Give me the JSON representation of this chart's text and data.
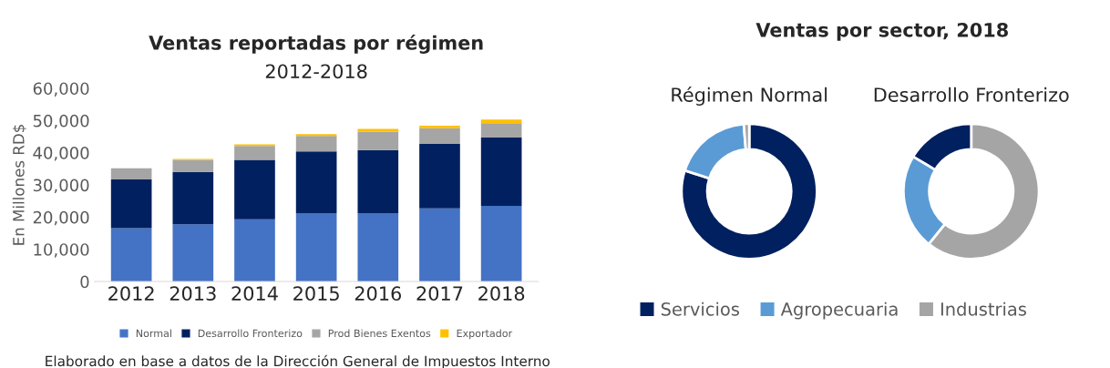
{
  "chart_data": [
    {
      "type": "bar",
      "title": "Ventas reportadas por régimen",
      "subtitle": "2012-2018",
      "ylabel": "En Millones RD$",
      "categories": [
        "2012",
        "2013",
        "2014",
        "2015",
        "2016",
        "2017",
        "2018"
      ],
      "stacked": true,
      "series": [
        {
          "name": "Normal",
          "color": "#4472c4",
          "values": [
            16600,
            17800,
            19300,
            21200,
            21200,
            22700,
            23500
          ]
        },
        {
          "name": "Desarrollo Fronterizo",
          "color": "#002060",
          "values": [
            15100,
            16200,
            18500,
            19200,
            19600,
            20000,
            21200
          ]
        },
        {
          "name": "Prod Bienes Exentos",
          "color": "#a5a5a5",
          "values": [
            3500,
            3800,
            4300,
            4800,
            5700,
            4900,
            4500
          ]
        },
        {
          "name": "Exportador",
          "color": "#ffc000",
          "values": [
            0,
            300,
            500,
            600,
            900,
            800,
            1100
          ]
        }
      ],
      "ylim": [
        0,
        60000
      ],
      "yticks": [
        {
          "value": 0,
          "label": "0"
        },
        {
          "value": 10000,
          "label": "10,000"
        },
        {
          "value": 20000,
          "label": "20,000"
        },
        {
          "value": 30000,
          "label": "30,000"
        },
        {
          "value": 40000,
          "label": "40,000"
        },
        {
          "value": 50000,
          "label": "50,000"
        },
        {
          "value": 60000,
          "label": "60,000"
        }
      ],
      "grid": false,
      "legend": "bottom",
      "annotations": [
        "Elaborado en base a datos de la Dirección General de Impuestos Interno"
      ]
    },
    {
      "type": "donut",
      "title": "Ventas por sector, 2018",
      "subtitle": "Régimen Normal",
      "categories": [
        "Servicios",
        "Agropecuaria",
        "Industrias"
      ],
      "values": [
        80,
        18.7,
        1.3
      ],
      "colors": [
        "#002060",
        "#5b9bd5",
        "#a5a5a5"
      ],
      "legend": "bottom"
    },
    {
      "type": "donut",
      "subtitle": "Desarrollo Fronterizo",
      "categories": [
        null,
        null,
        null
      ],
      "values": [
        60.8,
        22.8,
        16.4
      ],
      "colors": [
        "#a5a5a5",
        "#5b9bd5",
        "#002060"
      ]
    }
  ]
}
